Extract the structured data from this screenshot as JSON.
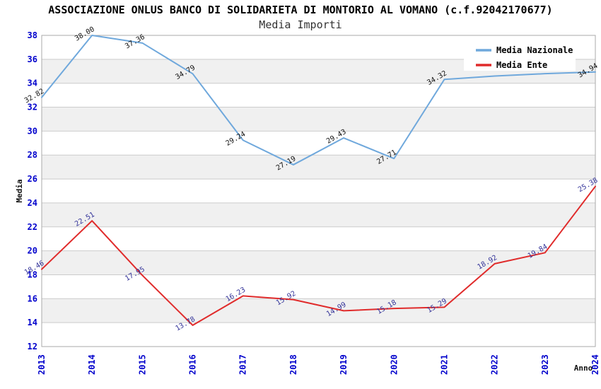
{
  "title": "ASSOCIAZIONE ONLUS BANCO DI SOLIDARIETA DI MONTORIO AL VOMANO (c.f.92042170677)",
  "subtitle": "Media Importi",
  "y_axis": {
    "label": "Media",
    "ticks": [
      38,
      36,
      34,
      32,
      30,
      28,
      26,
      24,
      22,
      20,
      18,
      16,
      14,
      12
    ]
  },
  "x_axis": {
    "label": "Anno",
    "ticks": [
      "2013",
      "2014",
      "2015",
      "2016",
      "2017",
      "2018",
      "2019",
      "2020",
      "2021",
      "2022",
      "2023",
      "2024"
    ]
  },
  "legend": {
    "position": "top-right",
    "items": [
      {
        "label": "Media Nazionale",
        "color": "#6FA8DC"
      },
      {
        "label": "Media Ente",
        "color": "#E02B2B"
      }
    ]
  },
  "colors": {
    "background": "#FFFFFF",
    "band": "#F0F0F0",
    "grid": "#CCCCCC",
    "plot_border": "#AAAAAA",
    "axis_tick_text": "#0000CC",
    "national_line": "#6FA8DC",
    "entity_line": "#E02B2B",
    "national_value_labels": "#111111",
    "entity_value_labels": "#333399",
    "legend_background": "#FFFFFF"
  },
  "chart_data": {
    "type": "line",
    "title": "ASSOCIAZIONE ONLUS BANCO DI SOLIDARIETA DI MONTORIO AL VOMANO (c.f.92042170677)",
    "subtitle": "Media Importi",
    "xlabel": "Anno",
    "ylabel": "Media",
    "x": [
      2013,
      2014,
      2015,
      2016,
      2017,
      2018,
      2019,
      2020,
      2021,
      2022,
      2023,
      2024
    ],
    "ylim": [
      12,
      38
    ],
    "y_tick_step": 2,
    "grid": "horizontal gridlines every 2 units with alternating light-gray shaded bands",
    "legend_position": "top-right inside plot, white background",
    "series": [
      {
        "name": "Media Nazionale",
        "color": "#6FA8DC",
        "values": [
          32.82,
          38.0,
          37.36,
          34.79,
          29.24,
          27.19,
          29.43,
          27.71,
          34.32,
          34.6,
          34.8,
          34.94
        ],
        "point_labels": [
          "32.82",
          "38.00",
          "37.36",
          "34.79",
          "29.24",
          "27.19",
          "29.43",
          "27.71",
          "34.32",
          null,
          null,
          "34.94"
        ],
        "label_color": "#111111",
        "note": "2022 and 2023 point labels are hidden behind the legend box; their values are estimated from the line pixels"
      },
      {
        "name": "Media Ente",
        "color": "#E02B2B",
        "values": [
          18.46,
          22.51,
          17.95,
          13.78,
          16.23,
          15.92,
          14.99,
          15.18,
          15.29,
          18.92,
          19.84,
          25.38
        ],
        "point_labels": [
          "18.46",
          "22.51",
          "17.95",
          "13.78",
          "16.23",
          "15.92",
          "14.99",
          "15.18",
          "15.29",
          "18.92",
          "19.84",
          "25.38"
        ],
        "label_color": "#333399"
      }
    ]
  }
}
